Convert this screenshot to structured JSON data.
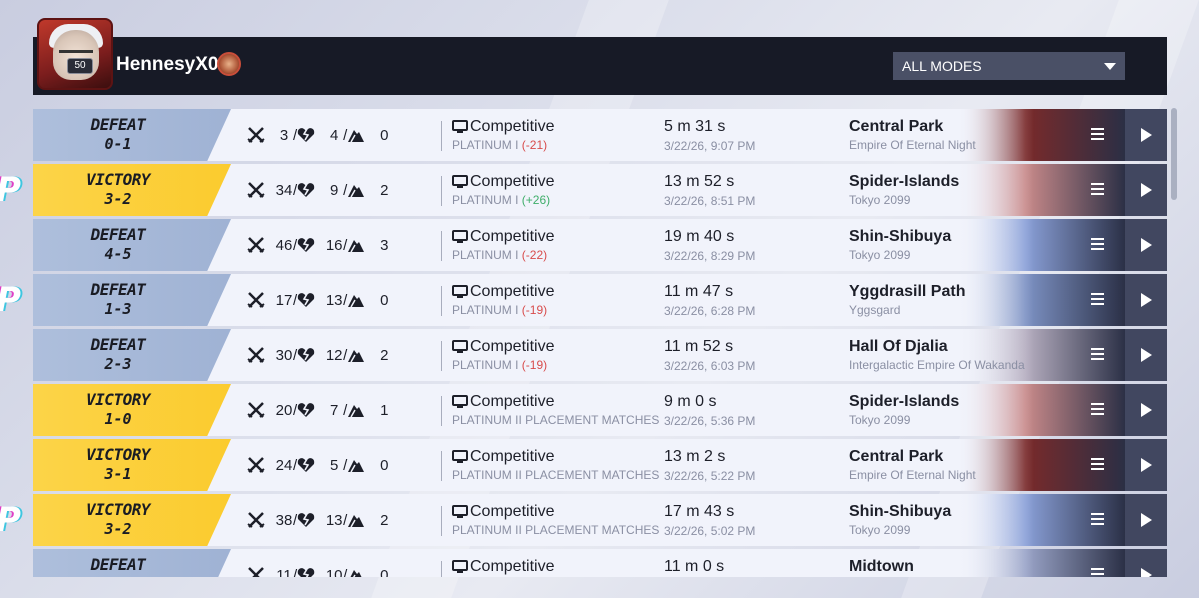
{
  "header": {
    "username": "HennesyX0",
    "level": "50",
    "mode_filter": "ALL MODES"
  },
  "side_letter": "P",
  "matches": [
    {
      "result": "DEFEAT",
      "type": "defeat",
      "score": "0-1",
      "kills": "3",
      "deaths": "4",
      "assists": "0",
      "mode": "Competitive",
      "rank": "PLATINUM I",
      "delta": "(-21)",
      "delta_type": "neg",
      "duration": "5 m 31 s",
      "datetime": "3/22/26, 9:07 PM",
      "map": "Central Park",
      "region": "Empire Of Eternal Night",
      "art": "central-park"
    },
    {
      "result": "VICTORY",
      "type": "victory",
      "score": "3-2",
      "kills": "34",
      "deaths": "9",
      "assists": "2",
      "mode": "Competitive",
      "rank": "PLATINUM I",
      "delta": "(+26)",
      "delta_type": "pos",
      "duration": "13 m 52 s",
      "datetime": "3/22/26, 8:51 PM",
      "map": "Spider-Islands",
      "region": "Tokyo 2099",
      "art": "spider-islands"
    },
    {
      "result": "DEFEAT",
      "type": "defeat",
      "score": "4-5",
      "kills": "46",
      "deaths": "16",
      "assists": "3",
      "mode": "Competitive",
      "rank": "PLATINUM I",
      "delta": "(-22)",
      "delta_type": "neg",
      "duration": "19 m 40 s",
      "datetime": "3/22/26, 8:29 PM",
      "map": "Shin-Shibuya",
      "region": "Tokyo 2099",
      "art": "shin-shibuya"
    },
    {
      "result": "DEFEAT",
      "type": "defeat",
      "score": "1-3",
      "kills": "17",
      "deaths": "13",
      "assists": "0",
      "mode": "Competitive",
      "rank": "PLATINUM I",
      "delta": "(-19)",
      "delta_type": "neg",
      "duration": "11 m 47 s",
      "datetime": "3/22/26, 6:28 PM",
      "map": "Yggdrasill Path",
      "region": "Yggsgard",
      "art": "yggdrasill"
    },
    {
      "result": "DEFEAT",
      "type": "defeat",
      "score": "2-3",
      "kills": "30",
      "deaths": "12",
      "assists": "2",
      "mode": "Competitive",
      "rank": "PLATINUM I",
      "delta": "(-19)",
      "delta_type": "neg",
      "duration": "11 m 52 s",
      "datetime": "3/22/26, 6:03 PM",
      "map": "Hall Of Djalia",
      "region": "Intergalactic Empire Of Wakanda",
      "art": "djalia"
    },
    {
      "result": "VICTORY",
      "type": "victory",
      "score": "1-0",
      "kills": "20",
      "deaths": "7",
      "assists": "1",
      "mode": "Competitive",
      "rank": "PLATINUM II PLACEMENT MATCHES",
      "delta": "",
      "delta_type": "",
      "duration": "9 m 0 s",
      "datetime": "3/22/26, 5:36 PM",
      "map": "Spider-Islands",
      "region": "Tokyo 2099",
      "art": "spider-islands"
    },
    {
      "result": "VICTORY",
      "type": "victory",
      "score": "3-1",
      "kills": "24",
      "deaths": "5",
      "assists": "0",
      "mode": "Competitive",
      "rank": "PLATINUM II PLACEMENT MATCHES",
      "delta": "",
      "delta_type": "",
      "duration": "13 m 2 s",
      "datetime": "3/22/26, 5:22 PM",
      "map": "Central Park",
      "region": "Empire Of Eternal Night",
      "art": "central-park"
    },
    {
      "result": "VICTORY",
      "type": "victory",
      "score": "3-2",
      "kills": "38",
      "deaths": "13",
      "assists": "2",
      "mode": "Competitive",
      "rank": "PLATINUM II PLACEMENT MATCHES",
      "delta": "",
      "delta_type": "",
      "duration": "17 m 43 s",
      "datetime": "3/22/26, 5:02 PM",
      "map": "Shin-Shibuya",
      "region": "Tokyo 2099",
      "art": "shin-shibuya"
    },
    {
      "result": "DEFEAT",
      "type": "defeat",
      "score": "",
      "kills": "11",
      "deaths": "10",
      "assists": "0",
      "mode": "Competitive",
      "rank": "",
      "delta": "",
      "delta_type": "",
      "duration": "11 m 0 s",
      "datetime": "",
      "map": "Midtown",
      "region": "",
      "art": "midtown"
    }
  ],
  "art_colors": {
    "central-park": "#7a2a2a",
    "spider-islands": "#c98a8a",
    "shin-shibuya": "#8aa0d8",
    "yggdrasill": "#7d92c4",
    "djalia": "#b6aec0",
    "midtown": "#9aa4c8"
  }
}
